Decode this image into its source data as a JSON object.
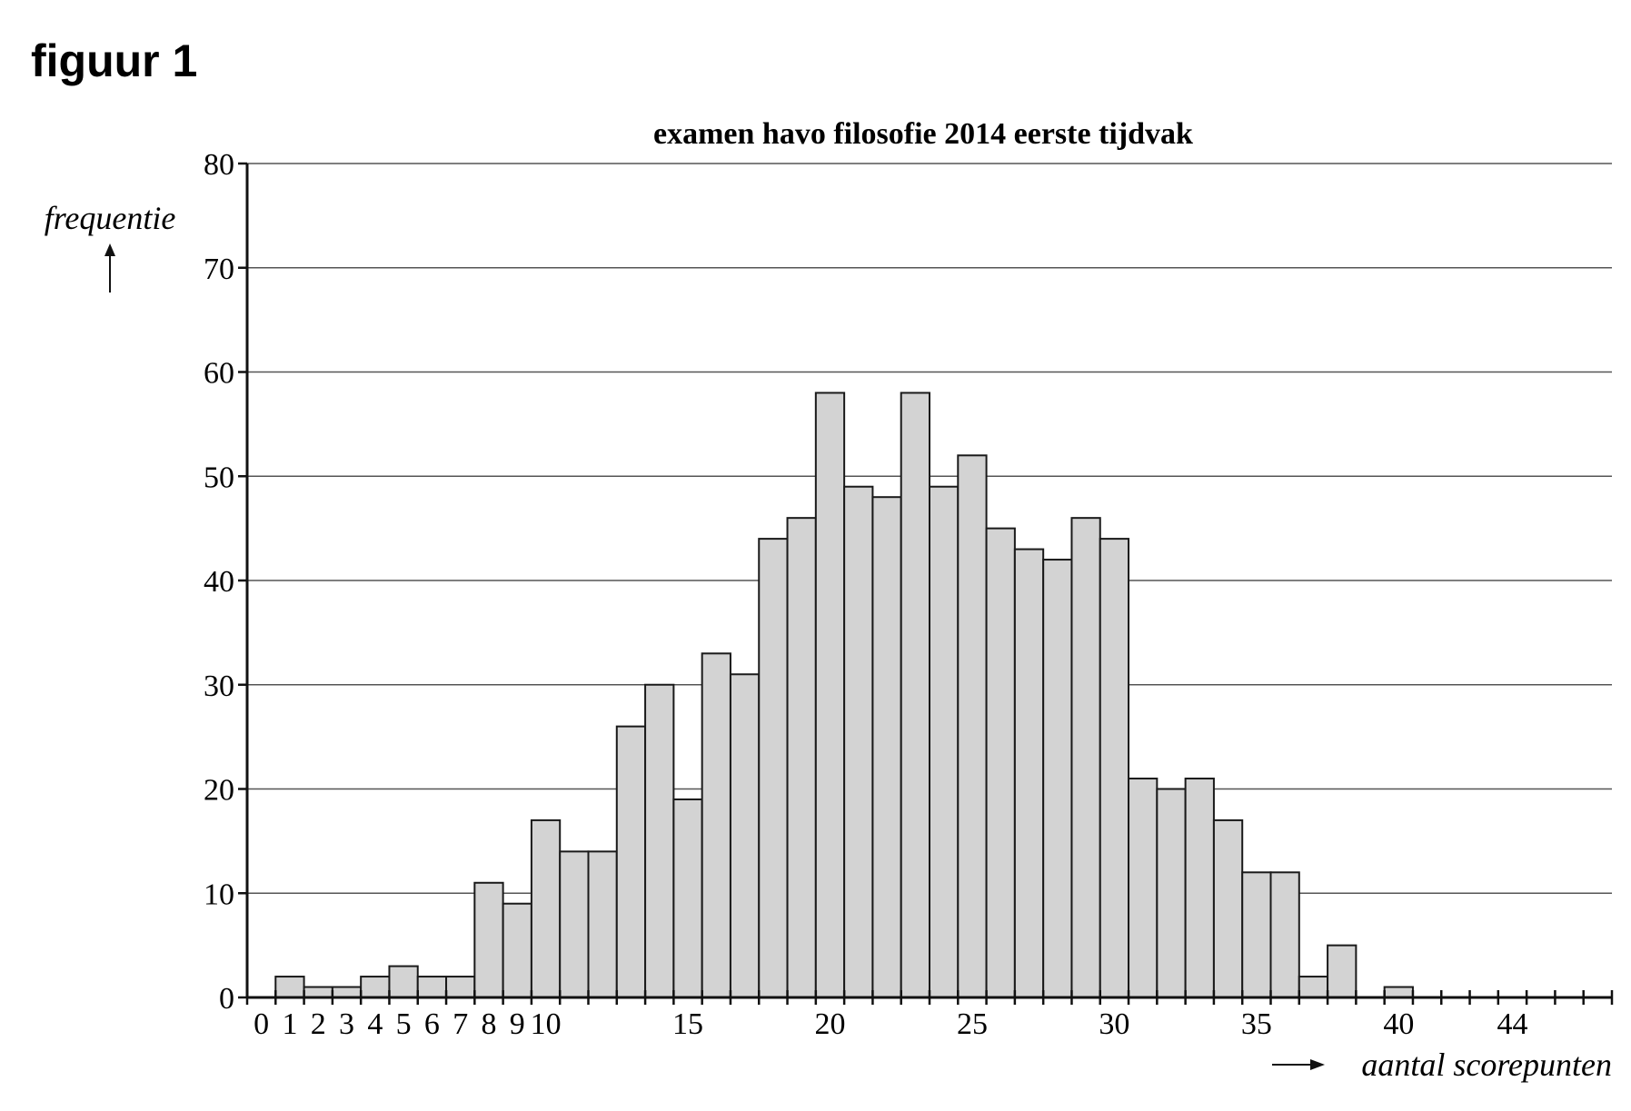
{
  "figure_label": "figuur 1",
  "chart_data": {
    "type": "bar",
    "title": "examen havo filosofie 2014 eerste tijdvak",
    "xlabel": "aantal scorepunten",
    "ylabel": "frequentie",
    "x": [
      0,
      1,
      2,
      3,
      4,
      5,
      6,
      7,
      8,
      9,
      10,
      11,
      12,
      13,
      14,
      15,
      16,
      17,
      18,
      19,
      20,
      21,
      22,
      23,
      24,
      25,
      26,
      27,
      28,
      29,
      30,
      31,
      32,
      33,
      34,
      35,
      36,
      37,
      38,
      39,
      40,
      41,
      42,
      43,
      44,
      45,
      46,
      47
    ],
    "values": [
      0,
      2,
      1,
      1,
      2,
      3,
      2,
      2,
      11,
      9,
      17,
      14,
      14,
      26,
      30,
      19,
      33,
      31,
      44,
      46,
      58,
      49,
      48,
      58,
      49,
      52,
      45,
      43,
      42,
      46,
      44,
      21,
      20,
      21,
      17,
      12,
      12,
      2,
      5,
      0,
      1,
      0,
      0,
      0,
      0,
      0,
      0,
      0
    ],
    "xlim": [
      0,
      48
    ],
    "ylim": [
      0,
      80
    ],
    "yticks": [
      0,
      10,
      20,
      30,
      40,
      50,
      60,
      70,
      80
    ],
    "xtick_labels": [
      "0",
      "1",
      "2",
      "3",
      "4",
      "5",
      "6",
      "7",
      "8",
      "9",
      "10",
      "15",
      "20",
      "25",
      "30",
      "35",
      "40",
      "44"
    ],
    "grid": true,
    "bar_color": "#d3d3d3"
  }
}
